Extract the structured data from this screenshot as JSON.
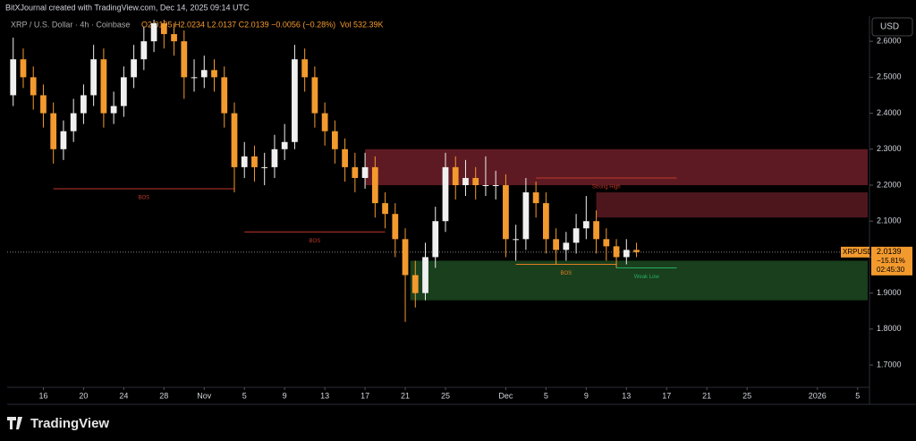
{
  "header": {
    "credit": "BitXJournal created with TradingView.com, Dec 14, 2025 09:14 UTC",
    "symbol": "XRP / U.S. Dollar · 4h · Coinbase",
    "ohlc": "O2.0195 H2.0234 L2.0137 C2.0139 −0.0056 (−0.28%)",
    "volume": "Vol 532.39K",
    "currency": "USD"
  },
  "price_tag": {
    "ticker": "XRPUSD",
    "price": "2.0139",
    "change": "−15.81%",
    "countdown": "02:45:30"
  },
  "footer": {
    "brand": "TradingView"
  },
  "chart_data": {
    "type": "candlestick",
    "up_color": "#f0f0f0",
    "down_color": "#f39a2e",
    "xlim": [
      12.4,
      98
    ],
    "ylim": [
      1.638,
      2.67
    ],
    "xticks": [
      {
        "value": 16,
        "label": "16"
      },
      {
        "value": 20,
        "label": "20"
      },
      {
        "value": 24,
        "label": "24"
      },
      {
        "value": 28,
        "label": "28"
      },
      {
        "value": 32,
        "label": "Nov"
      },
      {
        "value": 36,
        "label": "5"
      },
      {
        "value": 40,
        "label": "9"
      },
      {
        "value": 44,
        "label": "13"
      },
      {
        "value": 48,
        "label": "17"
      },
      {
        "value": 52,
        "label": "21"
      },
      {
        "value": 56,
        "label": "25"
      },
      {
        "value": 62,
        "label": "Dec"
      },
      {
        "value": 66,
        "label": "5"
      },
      {
        "value": 70,
        "label": "9"
      },
      {
        "value": 74,
        "label": "13"
      },
      {
        "value": 78,
        "label": "17"
      },
      {
        "value": 82,
        "label": "21"
      },
      {
        "value": 86,
        "label": "25"
      },
      {
        "value": 93,
        "label": "2026"
      },
      {
        "value": 97,
        "label": "5"
      }
    ],
    "yticks": [
      {
        "value": 1.7,
        "label": "1.7000"
      },
      {
        "value": 1.8,
        "label": "1.8000"
      },
      {
        "value": 1.9,
        "label": "1.9000"
      },
      {
        "value": 2.0,
        "label": "2.0000"
      },
      {
        "value": 2.1,
        "label": "2.1000"
      },
      {
        "value": 2.2,
        "label": "2.2000"
      },
      {
        "value": 2.3,
        "label": "2.3000"
      },
      {
        "value": 2.4,
        "label": "2.4000"
      },
      {
        "value": 2.5,
        "label": "2.5000"
      },
      {
        "value": 2.6,
        "label": "2.6000"
      }
    ],
    "x": [
      13,
      14,
      15,
      16,
      17,
      18,
      19,
      20,
      21,
      22,
      23,
      24,
      25,
      26,
      27,
      28,
      29,
      30,
      31,
      32,
      33,
      34,
      35,
      36,
      37,
      38,
      39,
      40,
      41,
      42,
      43,
      44,
      45,
      46,
      47,
      48,
      49,
      50,
      51,
      52,
      53,
      54,
      55,
      56,
      57,
      58,
      59,
      60,
      61,
      62,
      63,
      64,
      65,
      66,
      67,
      68,
      69,
      70,
      71,
      72,
      73,
      74,
      75
    ],
    "open": [
      2.45,
      2.55,
      2.5,
      2.45,
      2.4,
      2.3,
      2.35,
      2.4,
      2.45,
      2.55,
      2.4,
      2.42,
      2.5,
      2.55,
      2.6,
      2.65,
      2.62,
      2.6,
      2.5,
      2.5,
      2.52,
      2.5,
      2.4,
      2.25,
      2.28,
      2.25,
      2.25,
      2.3,
      2.32,
      2.55,
      2.5,
      2.4,
      2.35,
      2.3,
      2.25,
      2.22,
      2.25,
      2.15,
      2.12,
      2.05,
      1.95,
      1.9,
      2.0,
      2.1,
      2.25,
      2.2,
      2.22,
      2.2,
      2.2,
      2.2,
      2.05,
      2.05,
      2.18,
      2.15,
      2.05,
      2.02,
      2.04,
      2.08,
      2.1,
      2.05,
      2.03,
      2.0,
      2.02
    ],
    "high": [
      2.61,
      2.58,
      2.53,
      2.48,
      2.43,
      2.38,
      2.44,
      2.48,
      2.59,
      2.58,
      2.46,
      2.53,
      2.59,
      2.64,
      2.66,
      2.66,
      2.65,
      2.63,
      2.55,
      2.56,
      2.55,
      2.53,
      2.43,
      2.32,
      2.31,
      2.29,
      2.34,
      2.37,
      2.59,
      2.58,
      2.53,
      2.43,
      2.38,
      2.33,
      2.29,
      2.29,
      2.28,
      2.18,
      2.15,
      2.08,
      1.99,
      2.04,
      2.14,
      2.29,
      2.28,
      2.27,
      2.25,
      2.28,
      2.24,
      2.23,
      2.09,
      2.22,
      2.21,
      2.18,
      2.08,
      2.07,
      2.12,
      2.17,
      2.13,
      2.08,
      2.05,
      2.05,
      2.04
    ],
    "low": [
      2.42,
      2.47,
      2.41,
      2.36,
      2.26,
      2.27,
      2.32,
      2.37,
      2.42,
      2.36,
      2.37,
      2.39,
      2.47,
      2.52,
      2.57,
      2.58,
      2.56,
      2.44,
      2.46,
      2.47,
      2.46,
      2.36,
      2.18,
      2.22,
      2.21,
      2.2,
      2.22,
      2.27,
      2.3,
      2.46,
      2.36,
      2.31,
      2.26,
      2.21,
      2.18,
      2.19,
      2.11,
      2.08,
      2.0,
      1.82,
      1.86,
      1.88,
      1.97,
      2.07,
      2.16,
      2.17,
      2.16,
      2.17,
      2.16,
      2.0,
      1.99,
      2.02,
      2.11,
      2.01,
      1.98,
      1.99,
      2.01,
      2.05,
      2.01,
      1.99,
      1.97,
      1.98,
      2.0
    ],
    "close": [
      2.55,
      2.5,
      2.45,
      2.4,
      2.3,
      2.35,
      2.4,
      2.45,
      2.55,
      2.4,
      2.42,
      2.5,
      2.55,
      2.6,
      2.65,
      2.62,
      2.6,
      2.5,
      2.5,
      2.52,
      2.5,
      2.4,
      2.25,
      2.28,
      2.25,
      2.25,
      2.3,
      2.32,
      2.55,
      2.5,
      2.4,
      2.35,
      2.3,
      2.25,
      2.22,
      2.25,
      2.15,
      2.12,
      2.05,
      1.95,
      1.9,
      2.0,
      2.1,
      2.25,
      2.2,
      2.22,
      2.2,
      2.2,
      2.2,
      2.05,
      2.05,
      2.18,
      2.15,
      2.05,
      2.02,
      2.04,
      2.08,
      2.1,
      2.05,
      2.03,
      2.0,
      2.02,
      2.014
    ],
    "last_price": 2.0139,
    "zones": [
      {
        "from": 48,
        "low": 2.2,
        "high": 2.3,
        "color": "#6e1f28"
      },
      {
        "from": 71,
        "low": 2.11,
        "high": 2.18,
        "color": "#5a1a22"
      },
      {
        "from": 52.5,
        "low": 1.88,
        "high": 1.99,
        "color": "#1d4a22"
      }
    ],
    "levels": [
      {
        "label": "BOS",
        "value": 2.19,
        "from": 17,
        "to": 35,
        "color": "#c0392b"
      },
      {
        "label": "BOS",
        "value": 2.07,
        "from": 36,
        "to": 50,
        "color": "#c0392b"
      },
      {
        "label": "BOS",
        "value": 1.98,
        "from": 63,
        "to": 73,
        "color": "#e67e22"
      },
      {
        "label": "Strong High",
        "value": 2.22,
        "from": 65,
        "to": 79,
        "color": "#c0392b"
      },
      {
        "label": "Weak Low",
        "value": 1.97,
        "from": 73,
        "to": 79,
        "color": "#27ae60"
      }
    ]
  }
}
